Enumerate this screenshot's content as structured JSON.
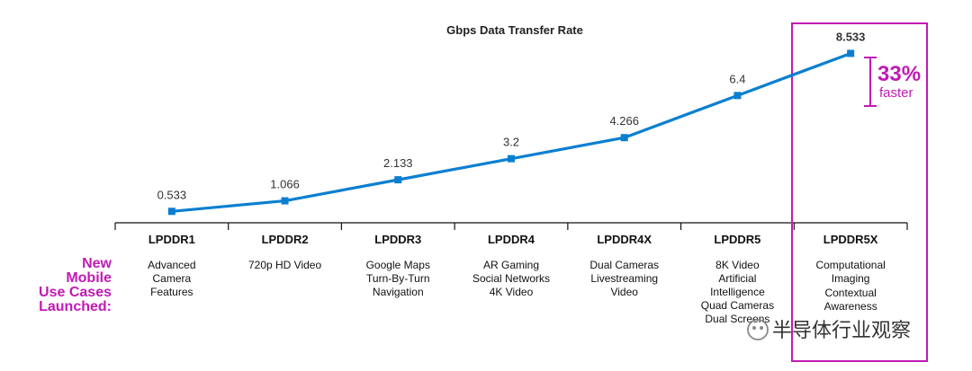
{
  "chart_data": {
    "type": "line",
    "title": "Gbps Data Transfer Rate",
    "categories": [
      "LPDDR1",
      "LPDDR2",
      "LPDDR3",
      "LPDDR4",
      "LPDDR4X",
      "LPDDR5",
      "LPDDR5X"
    ],
    "series": [
      {
        "values": [
          0.533,
          1.066,
          2.133,
          3.2,
          4.266,
          6.4,
          8.533
        ]
      }
    ],
    "value_labels": [
      "0.533",
      "1.066",
      "2.133",
      "3.2",
      "4.266",
      "6.4",
      "8.533"
    ],
    "use_cases": [
      [
        "Advanced",
        "Camera",
        "Features"
      ],
      [
        "720p HD Video"
      ],
      [
        "Google Maps",
        "Turn-By-Turn",
        "Navigation"
      ],
      [
        "AR Gaming",
        "Social Networks",
        "4K Video"
      ],
      [
        "Dual Cameras",
        "Livestreaming",
        "Video"
      ],
      [
        "8K Video",
        "Artificial",
        "Intelligence",
        "Quad Cameras",
        "Dual Screens"
      ],
      [
        "Computational",
        "Imaging",
        "Contextual",
        "Awareness"
      ]
    ],
    "side_label": [
      "New",
      "Mobile",
      "Use Cases",
      "Launched:"
    ],
    "highlight": {
      "category": "LPDDR5X",
      "percent": "33%",
      "text": "faster"
    },
    "line_color": "#0a7fd0",
    "accent_color": "#c21ab4",
    "grid": false
  },
  "watermark": "半导体行业观察"
}
